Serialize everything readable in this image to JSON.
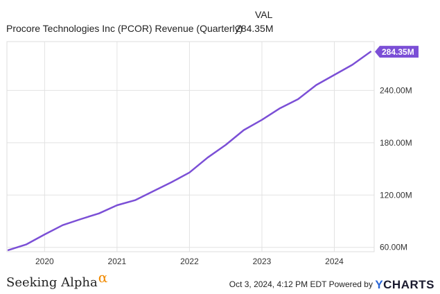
{
  "legend": {
    "column_header": "VAL",
    "series_name": "Procore Technologies Inc (PCOR) Revenue (Quarterly)",
    "latest_value": "284.35M"
  },
  "chart_data": {
    "type": "line",
    "title": "",
    "xlabel": "",
    "ylabel": "",
    "grid": true,
    "y_axis_side": "right",
    "xlim": [
      2019.48,
      2024.55
    ],
    "ylim": [
      55,
      296
    ],
    "x_ticks": [
      2020,
      2021,
      2022,
      2023,
      2024
    ],
    "x_tick_labels": [
      "2020",
      "2021",
      "2022",
      "2023",
      "2024"
    ],
    "y_ticks": [
      60,
      120,
      180,
      240
    ],
    "y_tick_labels": [
      "60.00M",
      "120.00M",
      "180.00M",
      "240.00M"
    ],
    "series": [
      {
        "name": "Procore Technologies Inc (PCOR) Revenue (Quarterly)",
        "color": "#7b4fd6",
        "x": [
          2019.5,
          2019.75,
          2020.0,
          2020.25,
          2020.5,
          2020.75,
          2021.0,
          2021.25,
          2021.5,
          2021.75,
          2022.0,
          2022.25,
          2022.5,
          2022.75,
          2023.0,
          2023.25,
          2023.5,
          2023.75,
          2024.0,
          2024.25,
          2024.5
        ],
        "y": [
          56.8,
          63.4,
          74.8,
          85.5,
          92.4,
          98.9,
          108.3,
          114.1,
          124.4,
          134.6,
          145.8,
          162.9,
          177.5,
          194.5,
          206.3,
          219.6,
          230.0,
          246.2,
          257.8,
          269.4,
          284.35
        ]
      }
    ],
    "last_value_label": "284.35M"
  },
  "footer": {
    "brand_name": "Seeking Alpha",
    "brand_symbol": "α",
    "timestamp": "Oct 3, 2024, 4:12 PM EDT",
    "powered_by": "Powered by",
    "ycharts_y": "Y",
    "ycharts_rest": "CHARTS"
  }
}
